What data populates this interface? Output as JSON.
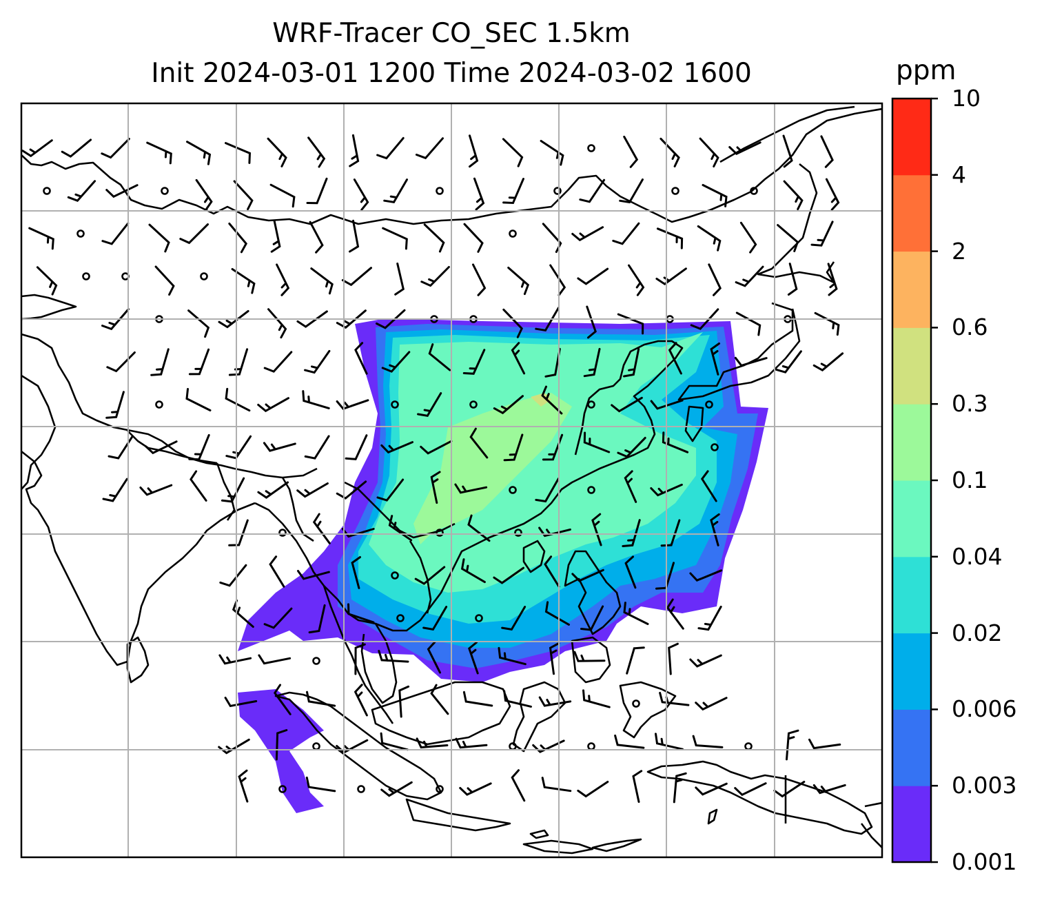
{
  "title": {
    "line1": "WRF-Tracer CO_SEC 1.5km",
    "line2": "Init 2024-03-01 1200 Time 2024-03-02 1600"
  },
  "colorbar": {
    "unit": "ppm",
    "levels": [
      "0.001",
      "0.003",
      "0.006",
      "0.02",
      "0.04",
      "0.1",
      "0.3",
      "0.6",
      "2",
      "4",
      "10"
    ],
    "colors": [
      "#6a2cf9",
      "#3573f3",
      "#00aeea",
      "#2ee0d6",
      "#6bf8bf",
      "#9cf99a",
      "#d0e17f",
      "#fdb35f",
      "#ff7037",
      "#ff2a16"
    ]
  },
  "map": {
    "field": "CO_SEC tracer concentration",
    "gridlines": true,
    "vectors": "wind barbs"
  }
}
